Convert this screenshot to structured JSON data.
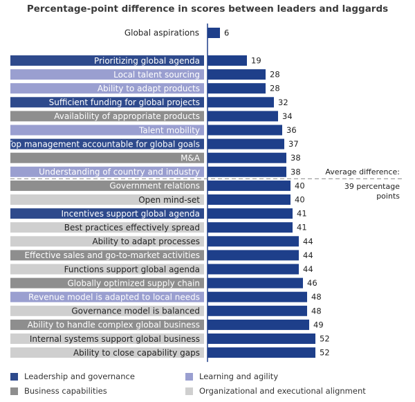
{
  "chart_data": {
    "type": "bar",
    "orientation": "horizontal",
    "title": "Percentage-point difference in scores between leaders and laggards",
    "xlim": [
      0,
      60
    ],
    "grid": false,
    "legend_position": "bottom",
    "groups": {
      "leadership": {
        "name": "Leadership and governance",
        "color": "#2e4a8c"
      },
      "learning": {
        "name": "Learning and agility",
        "color": "#9a9fd0"
      },
      "business": {
        "name": "Business capabilities",
        "color": "#8e8e8e"
      },
      "organizational": {
        "name": "Organizational and executional alignment",
        "color": "#cfcfcf"
      }
    },
    "legend_order": [
      "leadership",
      "learning",
      "business",
      "organizational"
    ],
    "reference": {
      "category": "Global aspirations",
      "value": 6
    },
    "categories": [
      {
        "name": "Prioritizing global agenda",
        "value": 19,
        "group": "leadership"
      },
      {
        "name": "Local talent sourcing",
        "value": 28,
        "group": "learning"
      },
      {
        "name": "Ability to adapt products",
        "value": 28,
        "group": "learning"
      },
      {
        "name": "Sufficient funding for global projects",
        "value": 32,
        "group": "leadership"
      },
      {
        "name": "Availability of appropriate products",
        "value": 34,
        "group": "business"
      },
      {
        "name": "Talent mobility",
        "value": 36,
        "group": "learning"
      },
      {
        "name": "Top management accountable for global goals",
        "value": 37,
        "group": "leadership"
      },
      {
        "name": "M&A",
        "value": 38,
        "group": "business"
      },
      {
        "name": "Understanding of country and industry",
        "value": 38,
        "group": "learning"
      },
      {
        "name": "Government relations",
        "value": 40,
        "group": "business"
      },
      {
        "name": "Open mind-set",
        "value": 40,
        "group": "organizational"
      },
      {
        "name": "Incentives support global agenda",
        "value": 41,
        "group": "leadership"
      },
      {
        "name": "Best practices effectively spread",
        "value": 41,
        "group": "organizational"
      },
      {
        "name": "Ability to adapt processes",
        "value": 44,
        "group": "organizational"
      },
      {
        "name": "Effective sales and go-to-market activities",
        "value": 44,
        "group": "business"
      },
      {
        "name": "Functions support global agenda",
        "value": 44,
        "group": "organizational"
      },
      {
        "name": "Globally optimized supply chain",
        "value": 46,
        "group": "business"
      },
      {
        "name": "Revenue model is adapted to local needs",
        "value": 48,
        "group": "learning"
      },
      {
        "name": "Governance model is balanced",
        "value": 48,
        "group": "organizational"
      },
      {
        "name": "Ability to handle complex global business",
        "value": 49,
        "group": "business"
      },
      {
        "name": "Internal systems support global business",
        "value": 52,
        "group": "organizational"
      },
      {
        "name": "Ability to close capability gaps",
        "value": 52,
        "group": "organizational"
      }
    ],
    "annotation": {
      "lines": [
        "Average difference:",
        "39 percentage",
        "points"
      ],
      "value": 39
    }
  }
}
